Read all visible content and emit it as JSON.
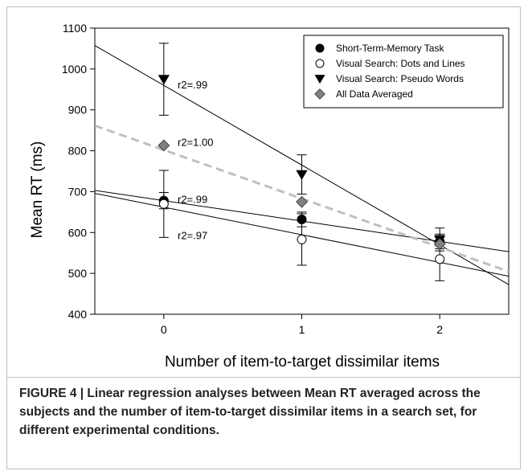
{
  "caption": "FIGURE 4 | Linear regression analyses between Mean RT averaged across the subjects and the number of item-to-target dissimilar items in a search set, for different experimental conditions.",
  "chart_data": {
    "type": "scatter",
    "xlabel": "Number of item-to-target dissimilar items",
    "ylabel": "Mean RT (ms)",
    "xlim": [
      -0.5,
      2.5
    ],
    "ylim": [
      400,
      1100
    ],
    "x_ticks": [
      0,
      1,
      2
    ],
    "y_ticks": [
      400,
      500,
      600,
      700,
      800,
      900,
      1000,
      1100
    ],
    "grid": false,
    "legend_position": "top-right",
    "series": [
      {
        "name": "Short-Term-Memory Task",
        "marker": "circle-filled",
        "color": "#000000",
        "x": [
          0,
          1,
          2
        ],
        "y": [
          678,
          632,
          578
        ],
        "error": [
          20,
          18,
          18
        ],
        "fit": {
          "slope": -50,
          "intercept": 678,
          "style": "solid",
          "color": "#000000"
        }
      },
      {
        "name": "Visual Search: Dots and Lines",
        "marker": "circle-open",
        "color": "#000000",
        "x": [
          0,
          1,
          2
        ],
        "y": [
          670,
          583,
          535
        ],
        "error": [
          82,
          63,
          53
        ],
        "fit": {
          "slope": -67.5,
          "intercept": 662,
          "style": "solid",
          "color": "#000000"
        }
      },
      {
        "name": "Visual Search: Pseudo Words",
        "marker": "triangle-down",
        "color": "#000000",
        "x": [
          0,
          1,
          2
        ],
        "y": [
          975,
          742,
          583
        ],
        "error": [
          88,
          48,
          28
        ],
        "fit": {
          "slope": -195,
          "intercept": 960,
          "style": "solid",
          "color": "#000000"
        }
      },
      {
        "name": "All Data Averaged",
        "marker": "diamond",
        "color": "#808080",
        "x": [
          0,
          1,
          2
        ],
        "y": [
          813,
          675,
          572
        ],
        "error": [],
        "fit": {
          "slope": -119,
          "intercept": 802,
          "style": "dashed",
          "color": "#bfbfbf"
        }
      }
    ],
    "annotations": [
      {
        "text": "r2=.99",
        "x": 0.1,
        "y": 960
      },
      {
        "text": "r2=1.00",
        "x": 0.1,
        "y": 820
      },
      {
        "text": "r2=.99",
        "x": 0.1,
        "y": 680
      },
      {
        "text": "r2=.97",
        "x": 0.1,
        "y": 592
      }
    ]
  }
}
